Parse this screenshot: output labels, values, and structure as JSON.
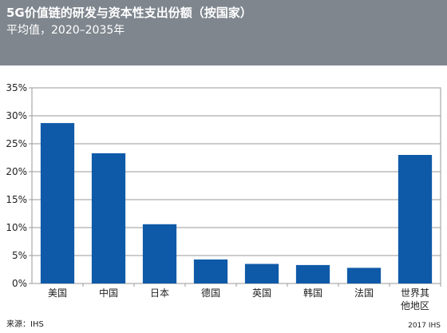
{
  "title": "5G价值链的研发与资本性支出份额（按国家）",
  "subtitle": "平均值，2020–2035年",
  "source": "来源：IHS",
  "copyright": "2017 IHS",
  "colors": {
    "header": "#7f868e",
    "bar": "#0f5aa8"
  },
  "chart_data": {
    "type": "bar",
    "title": "5G价值链的研发与资本性支出份额（按国家）",
    "subtitle": "平均值，2020–2035年",
    "categories": [
      "美国",
      "中国",
      "日本",
      "德国",
      "英国",
      "韩国",
      "法国",
      "世界其他地区"
    ],
    "category_lines": [
      [
        "美国"
      ],
      [
        "中国"
      ],
      [
        "日本"
      ],
      [
        "德国"
      ],
      [
        "英国"
      ],
      [
        "韩国"
      ],
      [
        "法国"
      ],
      [
        "世界其",
        "他地区"
      ]
    ],
    "values": [
      28.7,
      23.3,
      10.6,
      4.3,
      3.5,
      3.3,
      2.8,
      23.0
    ],
    "yticks": [
      "0%",
      "5%",
      "10%",
      "15%",
      "20%",
      "25%",
      "30%",
      "35%"
    ],
    "ylim": [
      0,
      35
    ],
    "grid": true,
    "xlabel": "",
    "ylabel": ""
  }
}
